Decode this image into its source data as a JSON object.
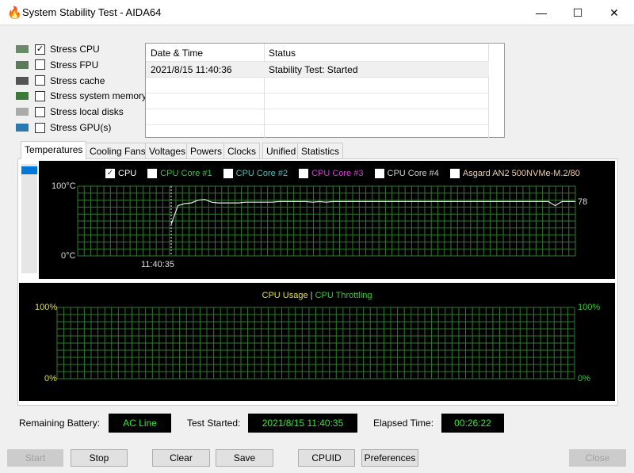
{
  "window": {
    "title": "System Stability Test - AIDA64",
    "minimize": "—",
    "maximize": "☐",
    "close": "✕"
  },
  "stress_options": [
    {
      "label": "Stress CPU",
      "checked": true,
      "icon": "cpu-icon"
    },
    {
      "label": "Stress FPU",
      "checked": false,
      "icon": "fpu-icon"
    },
    {
      "label": "Stress cache",
      "checked": false,
      "icon": "cache-icon"
    },
    {
      "label": "Stress system memory",
      "checked": false,
      "icon": "memory-icon"
    },
    {
      "label": "Stress local disks",
      "checked": false,
      "icon": "disk-icon"
    },
    {
      "label": "Stress GPU(s)",
      "checked": false,
      "icon": "gpu-icon"
    }
  ],
  "log": {
    "headers": [
      "Date & Time",
      "Status"
    ],
    "rows": [
      [
        "2021/8/15 11:40:36",
        "Stability Test: Started"
      ]
    ]
  },
  "tabs": [
    "Temperatures",
    "Cooling Fans",
    "Voltages",
    "Powers",
    "Clocks",
    "Unified",
    "Statistics"
  ],
  "active_tab": "Temperatures",
  "temp_chart": {
    "legend": [
      {
        "label": "CPU",
        "checked": true,
        "color": "#ffffff"
      },
      {
        "label": "CPU Core #1",
        "checked": false,
        "color": "#39c639"
      },
      {
        "label": "CPU Core #2",
        "checked": false,
        "color": "#4fc0c0"
      },
      {
        "label": "CPU Core #3",
        "checked": false,
        "color": "#d040d0"
      },
      {
        "label": "CPU Core #4",
        "checked": false,
        "color": "#d0d0d0"
      },
      {
        "label": "Asgard AN2 500NVMe-M.2/80",
        "checked": false,
        "color": "#f0d0b0"
      }
    ],
    "ymax_label": "100°C",
    "ymin_label": "0°C",
    "ylim": [
      0,
      100
    ],
    "start_marker_label": "11:40:35",
    "current_value": "78",
    "cpu_temp_samples": [
      45,
      72,
      75,
      76,
      80,
      81,
      77,
      76,
      76,
      76,
      76,
      77,
      77,
      77,
      77,
      77,
      78,
      78,
      78,
      78,
      78,
      77,
      78,
      77,
      78,
      78,
      78,
      78,
      78,
      78,
      78,
      78,
      78,
      78,
      78,
      78,
      78,
      78,
      78,
      78,
      78,
      78,
      78,
      78,
      78,
      78,
      78,
      78,
      78,
      78,
      78,
      78,
      78,
      78,
      78,
      78,
      78,
      72,
      78,
      78,
      78
    ]
  },
  "usage_chart": {
    "title_a": "CPU Usage",
    "separator": "|",
    "title_b": "CPU Throttling",
    "color_a": "#e0e040",
    "color_b": "#39c639",
    "ymax_left": "100%",
    "ymin_left": "0%",
    "ymax_right": "100%",
    "ymin_right": "0%"
  },
  "status": {
    "battery_label": "Remaining Battery:",
    "battery_value": "AC Line",
    "started_label": "Test Started:",
    "started_value": "2021/8/15 11:40:35",
    "elapsed_label": "Elapsed Time:",
    "elapsed_value": "00:26:22"
  },
  "buttons": {
    "start": "Start",
    "stop": "Stop",
    "clear": "Clear",
    "save": "Save",
    "cpuid": "CPUID",
    "preferences": "Preferences",
    "close": "Close"
  }
}
